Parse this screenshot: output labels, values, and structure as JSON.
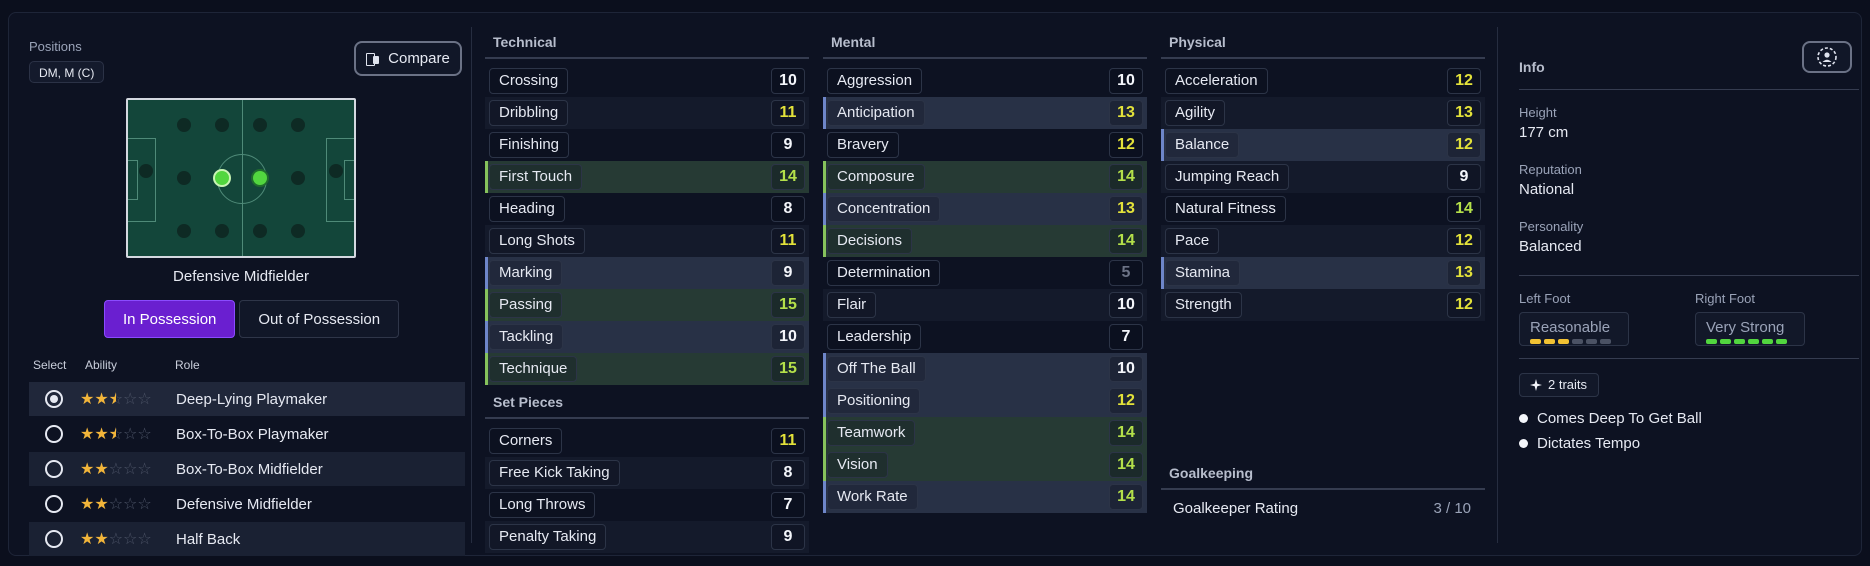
{
  "positions": {
    "label": "Positions",
    "value": "DM, M (C)"
  },
  "compare_label": "Compare",
  "role_title": "Defensive Midfielder",
  "tabs": [
    {
      "label": "In Possession",
      "active": true
    },
    {
      "label": "Out of Possession",
      "active": false
    }
  ],
  "roles_header": {
    "select": "Select",
    "ability": "Ability",
    "role": "Role"
  },
  "roles": [
    {
      "name": "Deep-Lying Playmaker",
      "stars": 2.5,
      "selected": true
    },
    {
      "name": "Box-To-Box Playmaker",
      "stars": 2.5,
      "selected": false
    },
    {
      "name": "Box-To-Box Midfielder",
      "stars": 2,
      "selected": false
    },
    {
      "name": "Defensive Midfielder",
      "stars": 2,
      "selected": false
    },
    {
      "name": "Half Back",
      "stars": 2,
      "selected": false
    }
  ],
  "technical": {
    "title": "Technical",
    "items": [
      {
        "name": "Crossing",
        "value": "10",
        "color": "white",
        "hl": ""
      },
      {
        "name": "Dribbling",
        "value": "11",
        "color": "yellow",
        "hl": ""
      },
      {
        "name": "Finishing",
        "value": "9",
        "color": "white",
        "hl": ""
      },
      {
        "name": "First Touch",
        "value": "14",
        "color": "green",
        "hl": "green"
      },
      {
        "name": "Heading",
        "value": "8",
        "color": "white",
        "hl": ""
      },
      {
        "name": "Long Shots",
        "value": "11",
        "color": "yellow",
        "hl": ""
      },
      {
        "name": "Marking",
        "value": "9",
        "color": "white",
        "hl": "blue"
      },
      {
        "name": "Passing",
        "value": "15",
        "color": "green",
        "hl": "green"
      },
      {
        "name": "Tackling",
        "value": "10",
        "color": "white",
        "hl": "blue"
      },
      {
        "name": "Technique",
        "value": "15",
        "color": "green",
        "hl": "green"
      }
    ]
  },
  "set_pieces": {
    "title": "Set Pieces",
    "items": [
      {
        "name": "Corners",
        "value": "11",
        "color": "yellow",
        "hl": ""
      },
      {
        "name": "Free Kick Taking",
        "value": "8",
        "color": "white",
        "hl": ""
      },
      {
        "name": "Long Throws",
        "value": "7",
        "color": "white",
        "hl": ""
      },
      {
        "name": "Penalty Taking",
        "value": "9",
        "color": "white",
        "hl": ""
      }
    ]
  },
  "mental": {
    "title": "Mental",
    "items": [
      {
        "name": "Aggression",
        "value": "10",
        "color": "white",
        "hl": ""
      },
      {
        "name": "Anticipation",
        "value": "13",
        "color": "yellow",
        "hl": "blue"
      },
      {
        "name": "Bravery",
        "value": "12",
        "color": "yellow",
        "hl": ""
      },
      {
        "name": "Composure",
        "value": "14",
        "color": "green",
        "hl": "green"
      },
      {
        "name": "Concentration",
        "value": "13",
        "color": "yellow",
        "hl": "blue"
      },
      {
        "name": "Decisions",
        "value": "14",
        "color": "green",
        "hl": "green"
      },
      {
        "name": "Determination",
        "value": "5",
        "color": "dim",
        "hl": ""
      },
      {
        "name": "Flair",
        "value": "10",
        "color": "white",
        "hl": ""
      },
      {
        "name": "Leadership",
        "value": "7",
        "color": "white",
        "hl": ""
      },
      {
        "name": "Off The Ball",
        "value": "10",
        "color": "white",
        "hl": "blue"
      },
      {
        "name": "Positioning",
        "value": "12",
        "color": "yellow",
        "hl": "blue"
      },
      {
        "name": "Teamwork",
        "value": "14",
        "color": "green",
        "hl": "green"
      },
      {
        "name": "Vision",
        "value": "14",
        "color": "green",
        "hl": "green"
      },
      {
        "name": "Work Rate",
        "value": "14",
        "color": "green",
        "hl": "blue"
      }
    ]
  },
  "physical": {
    "title": "Physical",
    "items": [
      {
        "name": "Acceleration",
        "value": "12",
        "color": "yellow",
        "hl": ""
      },
      {
        "name": "Agility",
        "value": "13",
        "color": "yellow",
        "hl": ""
      },
      {
        "name": "Balance",
        "value": "12",
        "color": "yellow",
        "hl": "blue"
      },
      {
        "name": "Jumping Reach",
        "value": "9",
        "color": "white",
        "hl": ""
      },
      {
        "name": "Natural Fitness",
        "value": "14",
        "color": "green",
        "hl": ""
      },
      {
        "name": "Pace",
        "value": "12",
        "color": "yellow",
        "hl": ""
      },
      {
        "name": "Stamina",
        "value": "13",
        "color": "yellow",
        "hl": "blue"
      },
      {
        "name": "Strength",
        "value": "12",
        "color": "yellow",
        "hl": ""
      }
    ]
  },
  "goalkeeping": {
    "title": "Goalkeeping",
    "label": "Goalkeeper Rating",
    "value": "3 / 10"
  },
  "info": {
    "title": "Info",
    "height_label": "Height",
    "height": "177 cm",
    "reputation_label": "Reputation",
    "reputation": "National",
    "personality_label": "Personality",
    "personality": "Balanced",
    "left_foot_label": "Left Foot",
    "left_foot": "Reasonable",
    "left_foot_level": 3,
    "right_foot_label": "Right Foot",
    "right_foot": "Very Strong",
    "right_foot_level": 6,
    "traits_count": "2 traits",
    "traits": [
      "Comes Deep To Get Ball",
      "Dictates Tempo"
    ]
  }
}
